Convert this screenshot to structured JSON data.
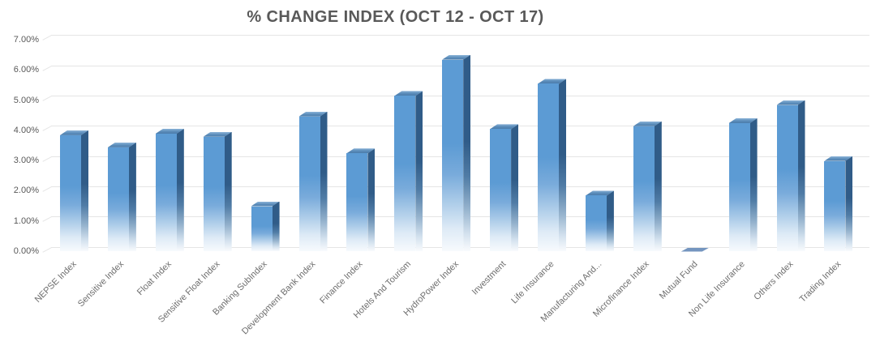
{
  "title": "% CHANGE INDEX (OCT 12 - OCT 17)",
  "chart_data": {
    "type": "bar",
    "title": "% CHANGE INDEX (OCT 12 - OCT 17)",
    "categories": [
      "NEPSE Index",
      "Sensitive Index",
      "Float Index",
      "Sensitive Float Index",
      "Banking SubIndex",
      "Development Bank Index",
      "Finance Index",
      "Hotels And Tourism",
      "HydroPower Index",
      "Investment",
      "Life Insurance",
      "Manufacturing And...",
      "Microfinance Index",
      "Mutual Fund",
      "Non Life Insurance",
      "Others Index",
      "Trading Index"
    ],
    "values": [
      3.85,
      3.45,
      3.9,
      3.8,
      1.5,
      4.47,
      3.25,
      5.15,
      6.35,
      4.05,
      5.55,
      1.85,
      4.15,
      -0.1,
      4.25,
      4.85,
      3.0
    ],
    "value_unit": "%",
    "xlabel": "",
    "ylabel": "",
    "ylim": [
      0,
      7
    ],
    "ytick_labels": [
      "0.00%",
      "1.00%",
      "2.00%",
      "3.00%",
      "4.00%",
      "5.00%",
      "6.00%",
      "7.00%"
    ],
    "grid": true,
    "legend": false,
    "x_labels_rotation_deg": -45,
    "style": {
      "bar_style": "3d-bevel with gradient fade to white at base",
      "bar_color": "#5c9bd4",
      "bar_side_color": "#305c88",
      "bar_top_color": "#4b7cab",
      "negative_bar_color": "#7495bf",
      "gridline_color": "#e5e5e5",
      "title_color": "#595959",
      "axis_label_color": "#595959",
      "category_label_color": "#6e6e6e",
      "background_color": "#ffffff"
    }
  }
}
